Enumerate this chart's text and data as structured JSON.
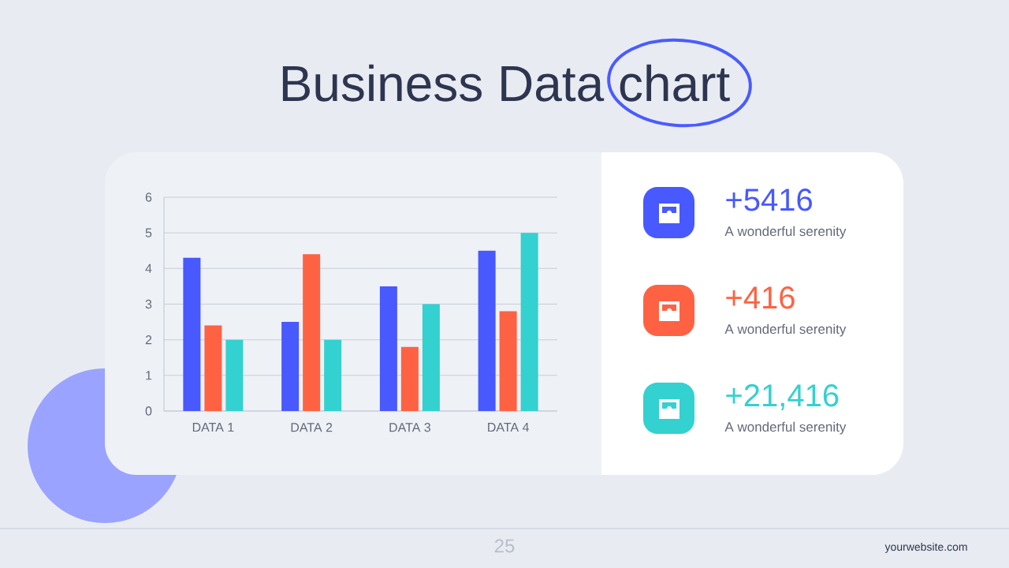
{
  "chart_data": [
    {
      "type": "bar",
      "title": "Business Data chart",
      "categories": [
        "DATA 1",
        "DATA 2",
        "DATA 3",
        "DATA 4"
      ],
      "series": [
        {
          "color": "#4759ff",
          "values": [
            4.3,
            2.5,
            3.5,
            4.5
          ]
        },
        {
          "color": "#ff6243",
          "values": [
            2.4,
            4.4,
            1.8,
            2.8
          ]
        },
        {
          "color": "#33d1d0",
          "values": [
            2,
            2,
            3,
            5
          ]
        }
      ],
      "ylim": [
        0,
        6
      ],
      "yticks": [
        0,
        1,
        2,
        3,
        4,
        5,
        6
      ],
      "grid": "y",
      "annotations": [
        "25",
        "yourwebsite.com"
      ]
    },
    {
      "type": "other",
      "annotations": [
        "+5416",
        "A wonderful serenity",
        "+416",
        "A wonderful serenity",
        "+21,416",
        "A wonderful serenity"
      ]
    }
  ]
}
